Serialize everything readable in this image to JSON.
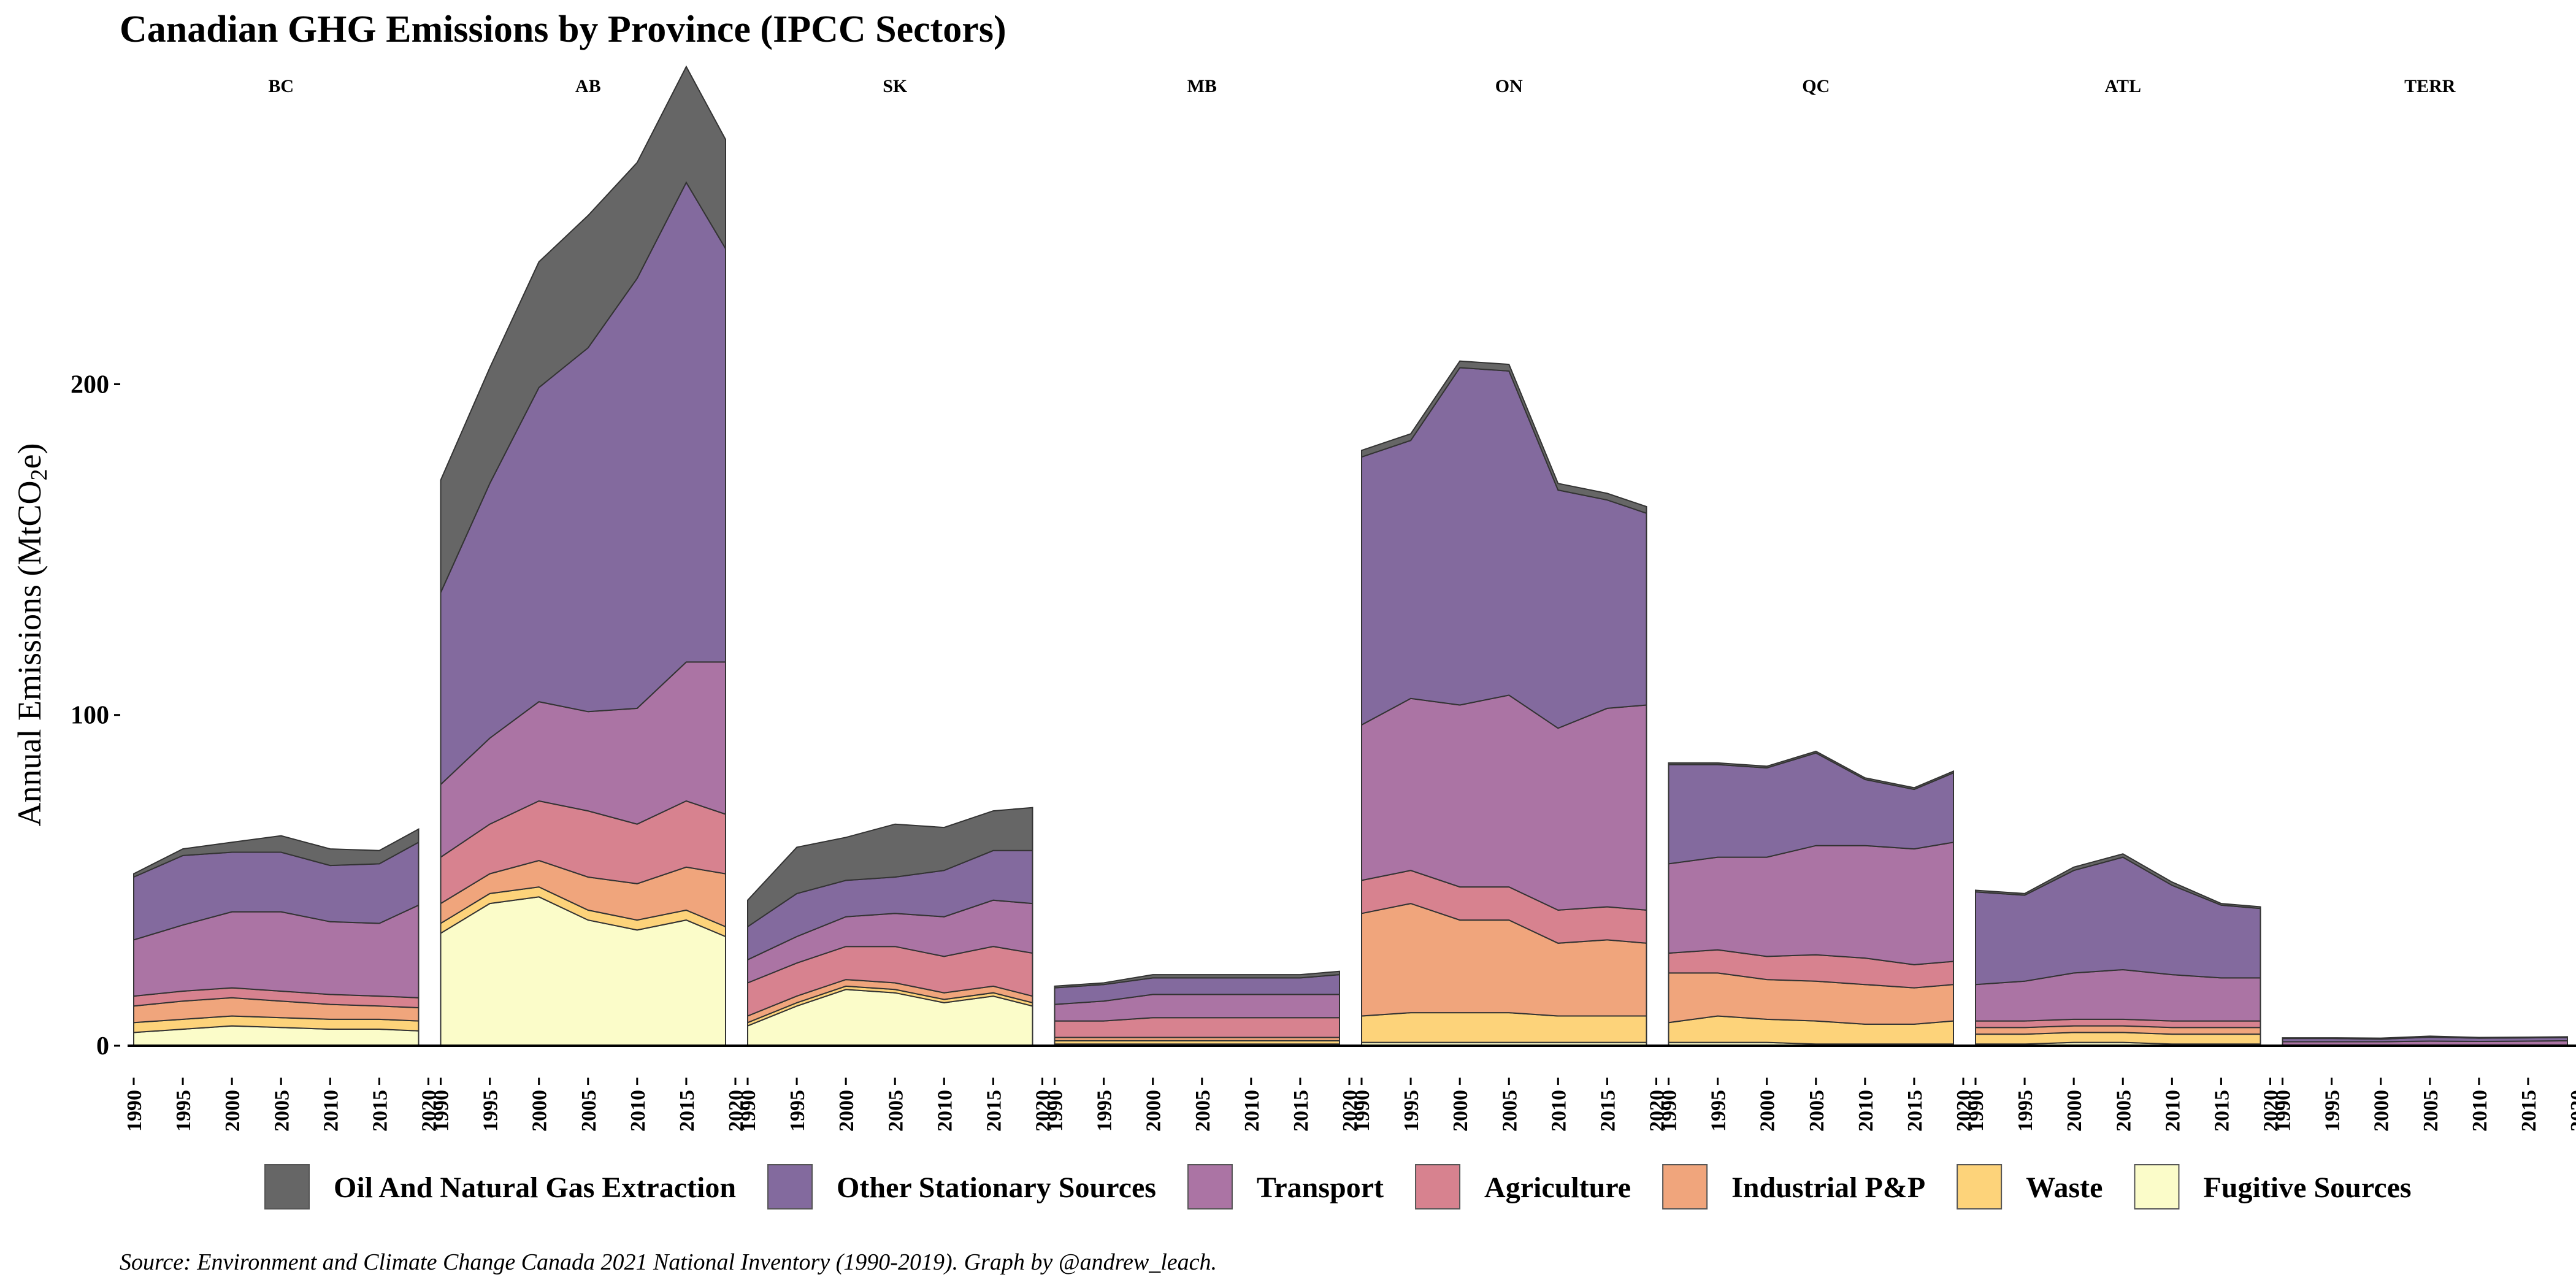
{
  "chart_data": {
    "type": "area",
    "title": "Canadian GHG Emissions by Province (IPCC Sectors)",
    "ylabel": "Annual Emissions (MtCO2e)",
    "ylabel_parts": {
      "main": "Annual Emissions (MtCO",
      "sub": "2",
      "end": "e)"
    },
    "xlabel": "",
    "caption": "Source: Environment and Climate Change Canada 2021 National Inventory (1990-2019). Graph by @andrew_leach.",
    "ylim": [
      0,
      280
    ],
    "yticks": [
      0,
      100,
      200
    ],
    "xticks": [
      1990,
      1995,
      2000,
      2005,
      2010,
      2015,
      2020
    ],
    "xlim": [
      1990,
      2020
    ],
    "stacked": true,
    "legend_position": "bottom",
    "grid": false,
    "x": [
      1990,
      1995,
      2000,
      2005,
      2010,
      2015,
      2019
    ],
    "sectors": [
      {
        "name": "Oil And Natural Gas Extraction",
        "color": "#666666"
      },
      {
        "name": "Other Stationary Sources",
        "color": "#836a9e"
      },
      {
        "name": "Transport",
        "color": "#ab74a4"
      },
      {
        "name": "Agriculture",
        "color": "#d7828f"
      },
      {
        "name": "Industrial P&P",
        "color": "#f0a57c"
      },
      {
        "name": "Waste",
        "color": "#fdd37a"
      },
      {
        "name": "Fugitive Sources",
        "color": "#fbfcc9"
      }
    ],
    "stack_order_bottom_to_top": [
      "Fugitive Sources",
      "Waste",
      "Industrial P&P",
      "Agriculture",
      "Transport",
      "Other Stationary Sources",
      "Oil And Natural Gas Extraction"
    ],
    "facets": [
      {
        "label": "BC",
        "series": {
          "Fugitive Sources": [
            4,
            5,
            6,
            5.5,
            5,
            5,
            4.5
          ],
          "Waste": [
            3,
            3,
            3,
            3,
            3,
            3,
            3
          ],
          "Industrial P&P": [
            5,
            5.5,
            5.5,
            5,
            4.5,
            4,
            4
          ],
          "Agriculture": [
            3,
            3,
            3,
            3,
            3,
            3,
            3
          ],
          "Transport": [
            17,
            20,
            23,
            24,
            22,
            22,
            28
          ],
          "Other Stationary Sources": [
            19,
            21,
            18,
            18,
            17,
            18,
            19
          ],
          "Oil And Natural Gas Extraction": [
            1,
            2,
            3,
            5,
            5,
            4,
            4
          ]
        }
      },
      {
        "label": "AB",
        "series": {
          "Fugitive Sources": [
            34,
            43,
            45,
            38,
            35,
            38,
            33
          ],
          "Waste": [
            3,
            3,
            3,
            3,
            3,
            3,
            3
          ],
          "Industrial P&P": [
            6,
            6,
            8,
            10,
            11,
            13,
            16
          ],
          "Agriculture": [
            14,
            15,
            18,
            20,
            18,
            20,
            18
          ],
          "Transport": [
            22,
            26,
            30,
            30,
            35,
            42,
            46
          ],
          "Other Stationary Sources": [
            58,
            77,
            95,
            110,
            130,
            145,
            125
          ],
          "Oil And Natural Gas Extraction": [
            34,
            35,
            38,
            40,
            35,
            35,
            33
          ]
        }
      },
      {
        "label": "SK",
        "series": {
          "Fugitive Sources": [
            6,
            12,
            17,
            16,
            13,
            15,
            12
          ],
          "Waste": [
            1,
            1,
            1,
            1,
            1,
            1,
            1
          ],
          "Industrial P&P": [
            2,
            2,
            2,
            2,
            2,
            2,
            2
          ],
          "Agriculture": [
            10,
            10,
            10,
            11,
            11,
            12,
            13
          ],
          "Transport": [
            7,
            8,
            9,
            10,
            12,
            14,
            15
          ],
          "Other Stationary Sources": [
            10,
            13,
            11,
            11,
            14,
            15,
            16
          ],
          "Oil And Natural Gas Extraction": [
            8,
            14,
            13,
            16,
            13,
            12,
            13
          ]
        }
      },
      {
        "label": "MB",
        "series": {
          "Fugitive Sources": [
            0.5,
            0.5,
            0.5,
            0.5,
            0.5,
            0.5,
            0.5
          ],
          "Waste": [
            1,
            1,
            1,
            1,
            1,
            1,
            1
          ],
          "Industrial P&P": [
            1,
            1,
            1,
            1,
            1,
            1,
            1
          ],
          "Agriculture": [
            5,
            5,
            6,
            6,
            6,
            6,
            6
          ],
          "Transport": [
            5,
            6,
            7,
            7,
            7,
            7,
            7
          ],
          "Other Stationary Sources": [
            5,
            5,
            5,
            5,
            5,
            5,
            6
          ],
          "Oil And Natural Gas Extraction": [
            0.5,
            0.5,
            1,
            1,
            1,
            1,
            1
          ]
        }
      },
      {
        "label": "ON",
        "series": {
          "Fugitive Sources": [
            1,
            1,
            1,
            1,
            1,
            1,
            1
          ],
          "Waste": [
            8,
            9,
            9,
            9,
            8,
            8,
            8
          ],
          "Industrial P&P": [
            31,
            33,
            28,
            28,
            22,
            23,
            22
          ],
          "Agriculture": [
            10,
            10,
            10,
            10,
            10,
            10,
            10
          ],
          "Transport": [
            47,
            52,
            55,
            58,
            55,
            60,
            62
          ],
          "Other Stationary Sources": [
            81,
            78,
            102,
            98,
            72,
            63,
            58
          ],
          "Oil And Natural Gas Extraction": [
            2,
            2,
            2,
            2,
            2,
            2,
            2
          ]
        }
      },
      {
        "label": "QC",
        "series": {
          "Fugitive Sources": [
            1,
            1,
            1,
            0.5,
            0.5,
            0.5,
            0.5
          ],
          "Waste": [
            6,
            8,
            7,
            7,
            6,
            6,
            7
          ],
          "Industrial P&P": [
            15,
            13,
            12,
            12,
            12,
            11,
            11
          ],
          "Agriculture": [
            6,
            7,
            7,
            8,
            8,
            7,
            7
          ],
          "Transport": [
            27,
            28,
            30,
            33,
            34,
            35,
            36
          ],
          "Other Stationary Sources": [
            30,
            28,
            27,
            28,
            20,
            18,
            21
          ],
          "Oil And Natural Gas Extraction": [
            0.5,
            0.5,
            0.5,
            0.5,
            0.5,
            0.5,
            0.5
          ]
        }
      },
      {
        "label": "ATL",
        "series": {
          "Fugitive Sources": [
            0.5,
            0.5,
            1,
            1,
            0.5,
            0.5,
            0.5
          ],
          "Waste": [
            3,
            3,
            3,
            3,
            3,
            3,
            3
          ],
          "Industrial P&P": [
            2,
            2,
            2,
            2,
            2,
            2,
            2
          ],
          "Agriculture": [
            2,
            2,
            2,
            2,
            2,
            2,
            2
          ],
          "Transport": [
            11,
            12,
            14,
            15,
            14,
            13,
            13
          ],
          "Other Stationary Sources": [
            28,
            26,
            31,
            34,
            27,
            22,
            21
          ],
          "Oil And Natural Gas Extraction": [
            0.5,
            0.5,
            1,
            1,
            1,
            0.5,
            0.5
          ]
        }
      },
      {
        "label": "TERR",
        "series": {
          "Fugitive Sources": [
            0,
            0,
            0,
            0,
            0,
            0,
            0
          ],
          "Waste": [
            0,
            0,
            0,
            0,
            0,
            0,
            0
          ],
          "Industrial P&P": [
            0.1,
            0.1,
            0.1,
            0.1,
            0.1,
            0.1,
            0.1
          ],
          "Agriculture": [
            0.1,
            0.1,
            0.1,
            0.1,
            0.1,
            0.1,
            0.1
          ],
          "Transport": [
            1,
            1,
            1,
            1.2,
            1.1,
            1.2,
            1.3
          ],
          "Other Stationary Sources": [
            1,
            1,
            0.8,
            1.2,
            1,
            1,
            1
          ],
          "Oil And Natural Gas Extraction": [
            0.2,
            0.2,
            0.3,
            0.3,
            0.2,
            0.2,
            0.2
          ]
        }
      }
    ]
  }
}
